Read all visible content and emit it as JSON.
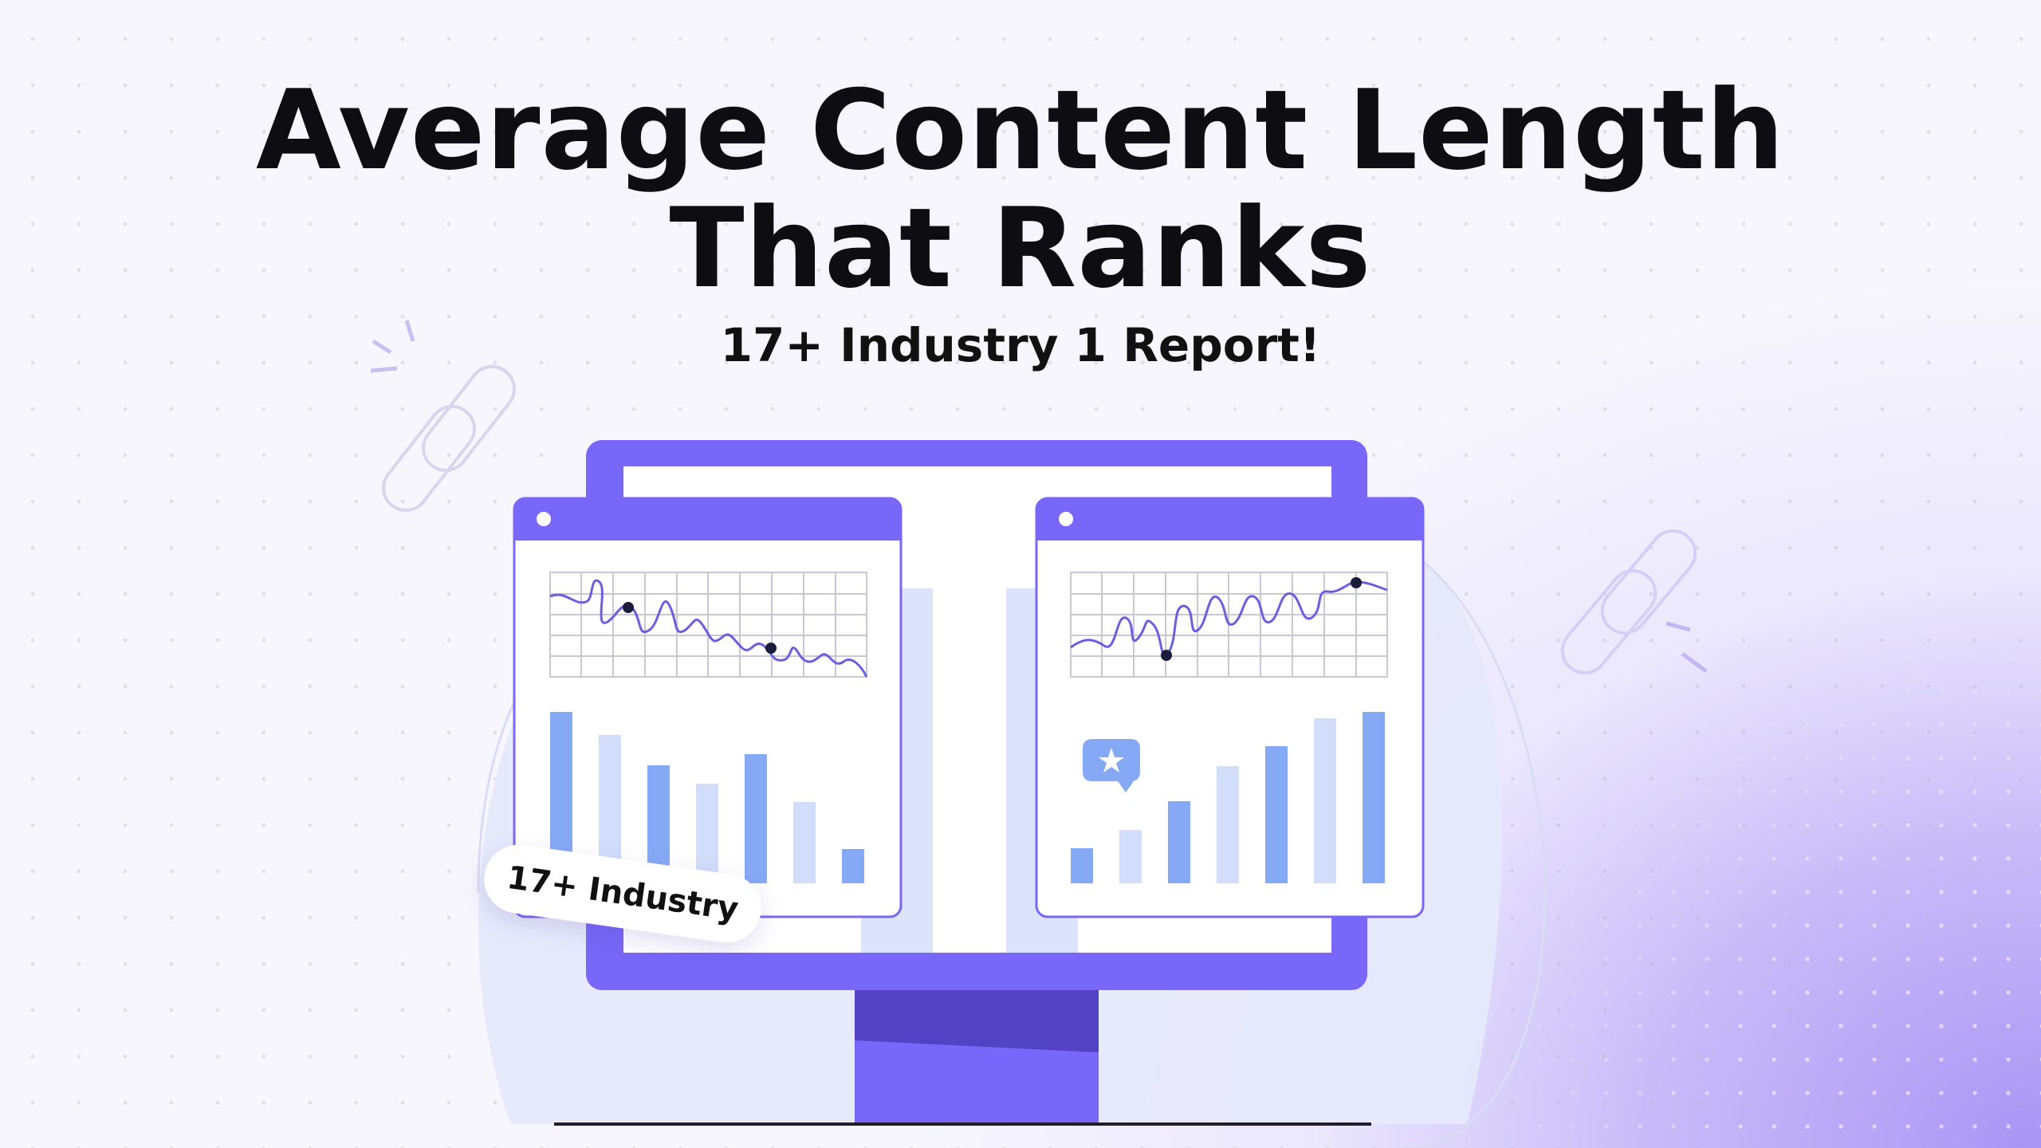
{
  "title_line1": "Average Content Length",
  "title_line2": "That Ranks",
  "subtitle": "17+ Industry 1 Report!",
  "badge": "17+ Industry",
  "colors": {
    "accent": "#7867f8",
    "accent_dark": "#5342c4",
    "bar_blue": "#86a9f5",
    "bar_light": "#d2ddfb",
    "line": "#6b5fe0",
    "dot": "#1b1b3a"
  },
  "icons": [
    "chain-link-icon",
    "star-comment-icon"
  ]
}
